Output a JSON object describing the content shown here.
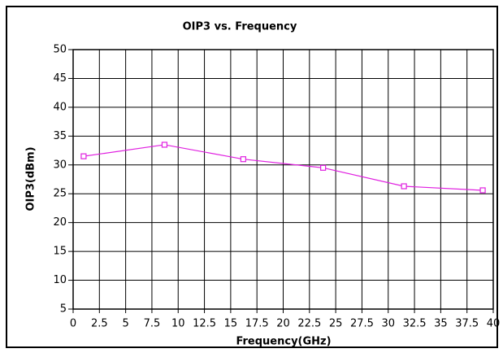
{
  "chart_data": {
    "type": "line",
    "title": "OIP3 vs. Frequency",
    "x_label": "Frequency(GHz)",
    "y_label": "OIP3(dBm)",
    "x": [
      1,
      8.7,
      16.2,
      23.8,
      31.5,
      39
    ],
    "series": [
      {
        "name": "OIP3",
        "color": "#e020e0",
        "values": [
          31.5,
          33.5,
          31,
          29.5,
          26.3,
          25.6
        ]
      }
    ],
    "xlim": [
      0,
      40
    ],
    "xticks": [
      0,
      2.5,
      5,
      7.5,
      10,
      12.5,
      15,
      17.5,
      20,
      22.5,
      25,
      27.5,
      30,
      32.5,
      35,
      37.5,
      40
    ],
    "ylim": [
      5,
      50
    ],
    "yticks": [
      5,
      10,
      15,
      20,
      25,
      30,
      35,
      40,
      45,
      50
    ],
    "grid": true
  }
}
